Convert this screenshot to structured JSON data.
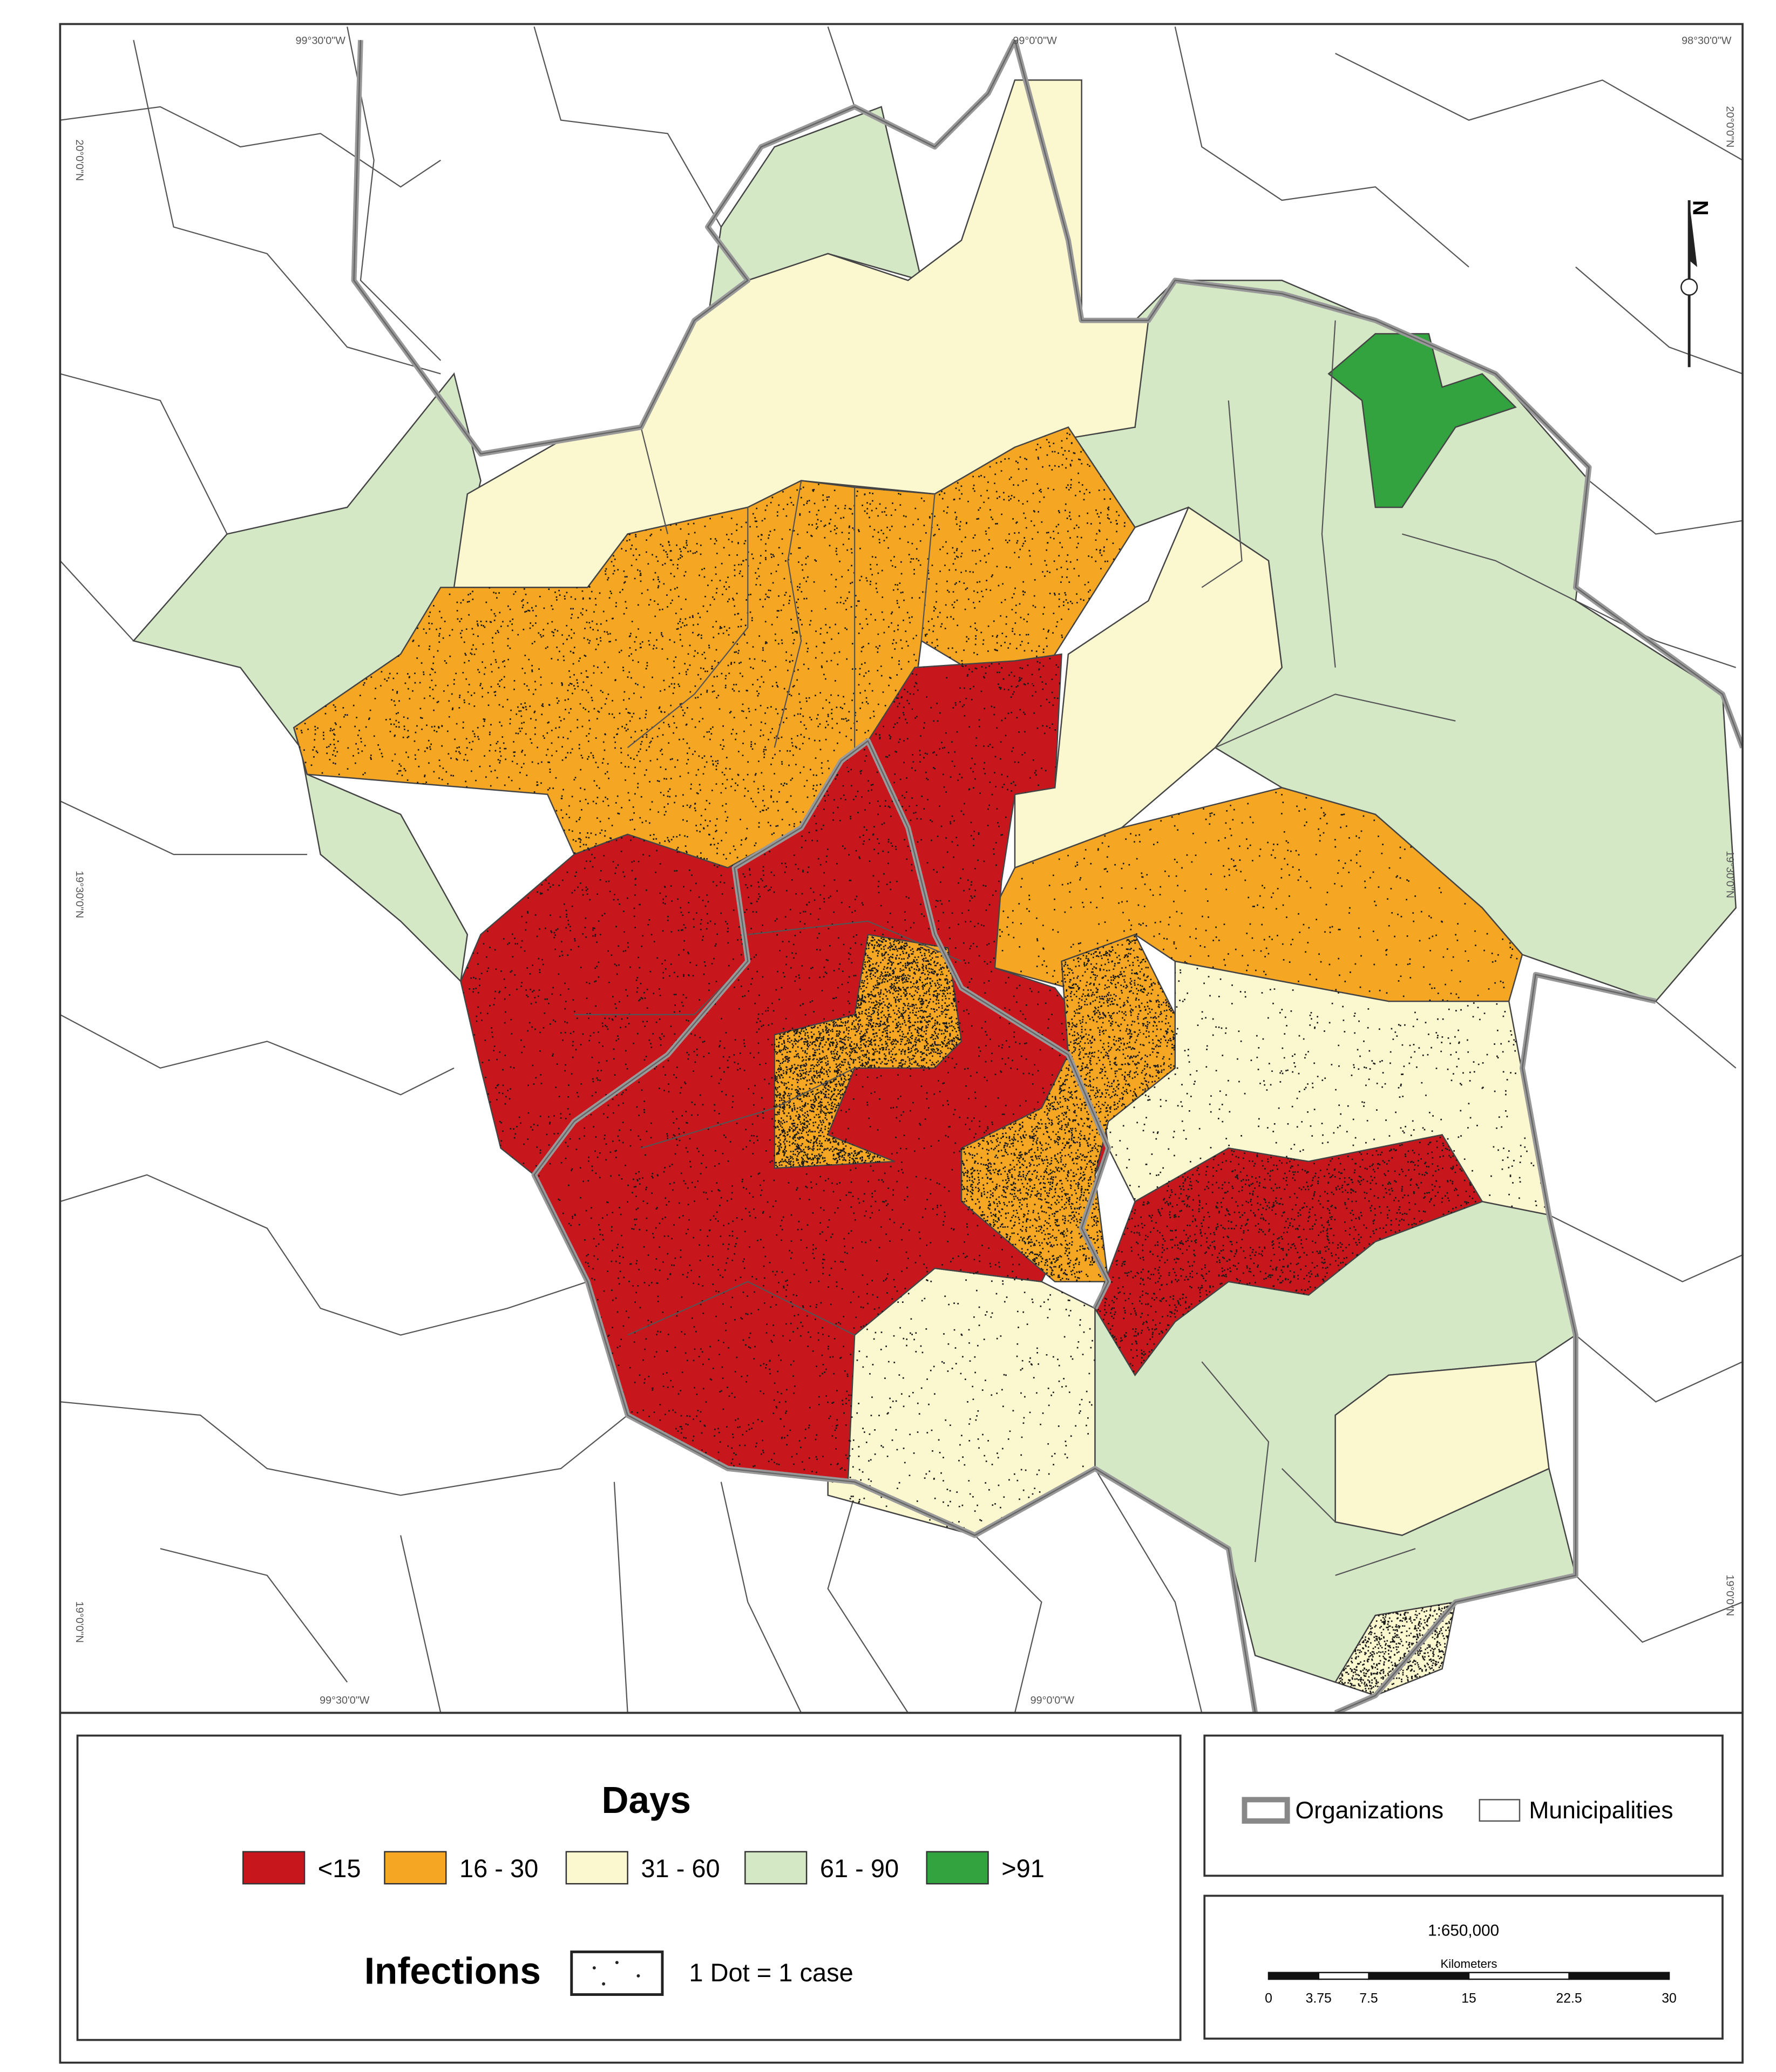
{
  "map": {
    "graticule": {
      "top": [
        "99°30'0\"W",
        "99°0'0\"W",
        "98°30'0\"W"
      ],
      "bottom": [
        "99°30'0\"W",
        "99°0'0\"W"
      ],
      "left": [
        "20°0'0\"N",
        "19°30'0\"N",
        "19°0'0\"N"
      ],
      "right": [
        "20°0'0\"N",
        "19°30'0\"N",
        "19°0'0\"N"
      ]
    },
    "north_label": "N"
  },
  "legend": {
    "title": "Days",
    "classes": [
      {
        "label": "<15",
        "color": "#c8161d"
      },
      {
        "label": "16 - 30",
        "color": "#f5a623"
      },
      {
        "label": "31 - 60",
        "color": "#fbf7cf"
      },
      {
        "label": "61 - 90",
        "color": "#d4e8c6"
      },
      {
        "label": ">91",
        "color": "#33a33f"
      }
    ],
    "infections_title": "Infections",
    "dot_note": "1 Dot = 1 case",
    "organizations": "Organizations",
    "municipalities": "Municipalities"
  },
  "scale": {
    "ratio": "1:650,000",
    "unit": "Kilometers",
    "ticks": [
      0,
      3.75,
      7.5,
      15,
      22.5,
      30
    ]
  }
}
